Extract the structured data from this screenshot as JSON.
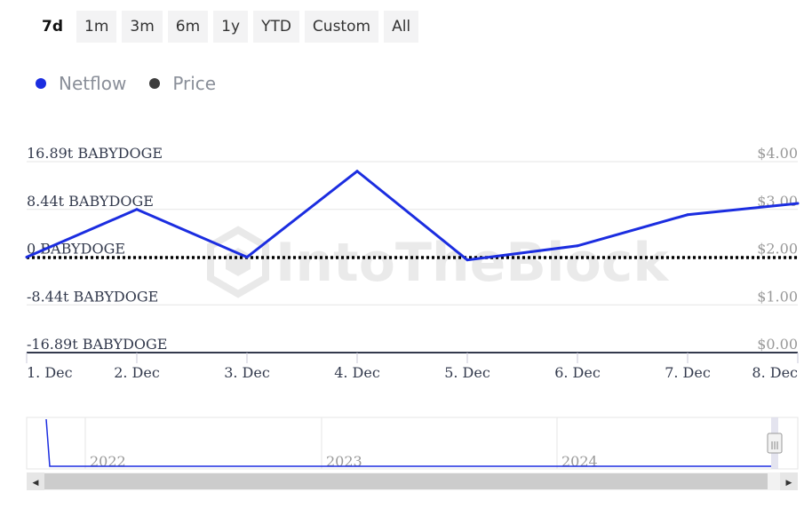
{
  "range_buttons": [
    "7d",
    "1m",
    "3m",
    "6m",
    "1y",
    "YTD",
    "Custom",
    "All"
  ],
  "active_range": "7d",
  "legend": [
    {
      "label": "Netflow",
      "color": "#1b2de0"
    },
    {
      "label": "Price",
      "color": "#3c3c3c"
    }
  ],
  "watermark": "IntoTheBlock",
  "colors": {
    "netflow": "#1b2de0",
    "price": "#000000",
    "grid": "#e6e6e6",
    "axis": "#333a4d"
  },
  "chart_data": {
    "type": "line",
    "categories": [
      "1. Dec",
      "2. Dec",
      "3. Dec",
      "4. Dec",
      "5. Dec",
      "6. Dec",
      "7. Dec",
      "8. Dec"
    ],
    "y_left_ticks": [
      "16.89t BABYDOGE",
      "8.44t BABYDOGE",
      "0 BABYDOGE",
      "-8.44t BABYDOGE",
      "-16.89t BABYDOGE"
    ],
    "y_right_ticks": [
      "$4.00",
      "$3.00",
      "$2.00",
      "$1.00",
      "$0.00"
    ],
    "y_left_range": [
      -16.89,
      16.89
    ],
    "y_right_range": [
      0,
      4
    ],
    "series": [
      {
        "name": "Netflow",
        "axis": "left",
        "unit": "t BABYDOGE",
        "values": [
          0.0,
          8.44,
          0.0,
          15.2,
          -0.5,
          2.0,
          7.5,
          9.5
        ]
      },
      {
        "name": "Price",
        "axis": "right",
        "unit": "$",
        "values": [
          1.99,
          1.99,
          1.99,
          1.99,
          1.99,
          1.99,
          1.99,
          1.99
        ]
      }
    ]
  },
  "navigator": {
    "year_labels": [
      "2022",
      "2023",
      "2024"
    ],
    "scroll_left": "◀",
    "scroll_right": "▶",
    "handle": "|||"
  }
}
